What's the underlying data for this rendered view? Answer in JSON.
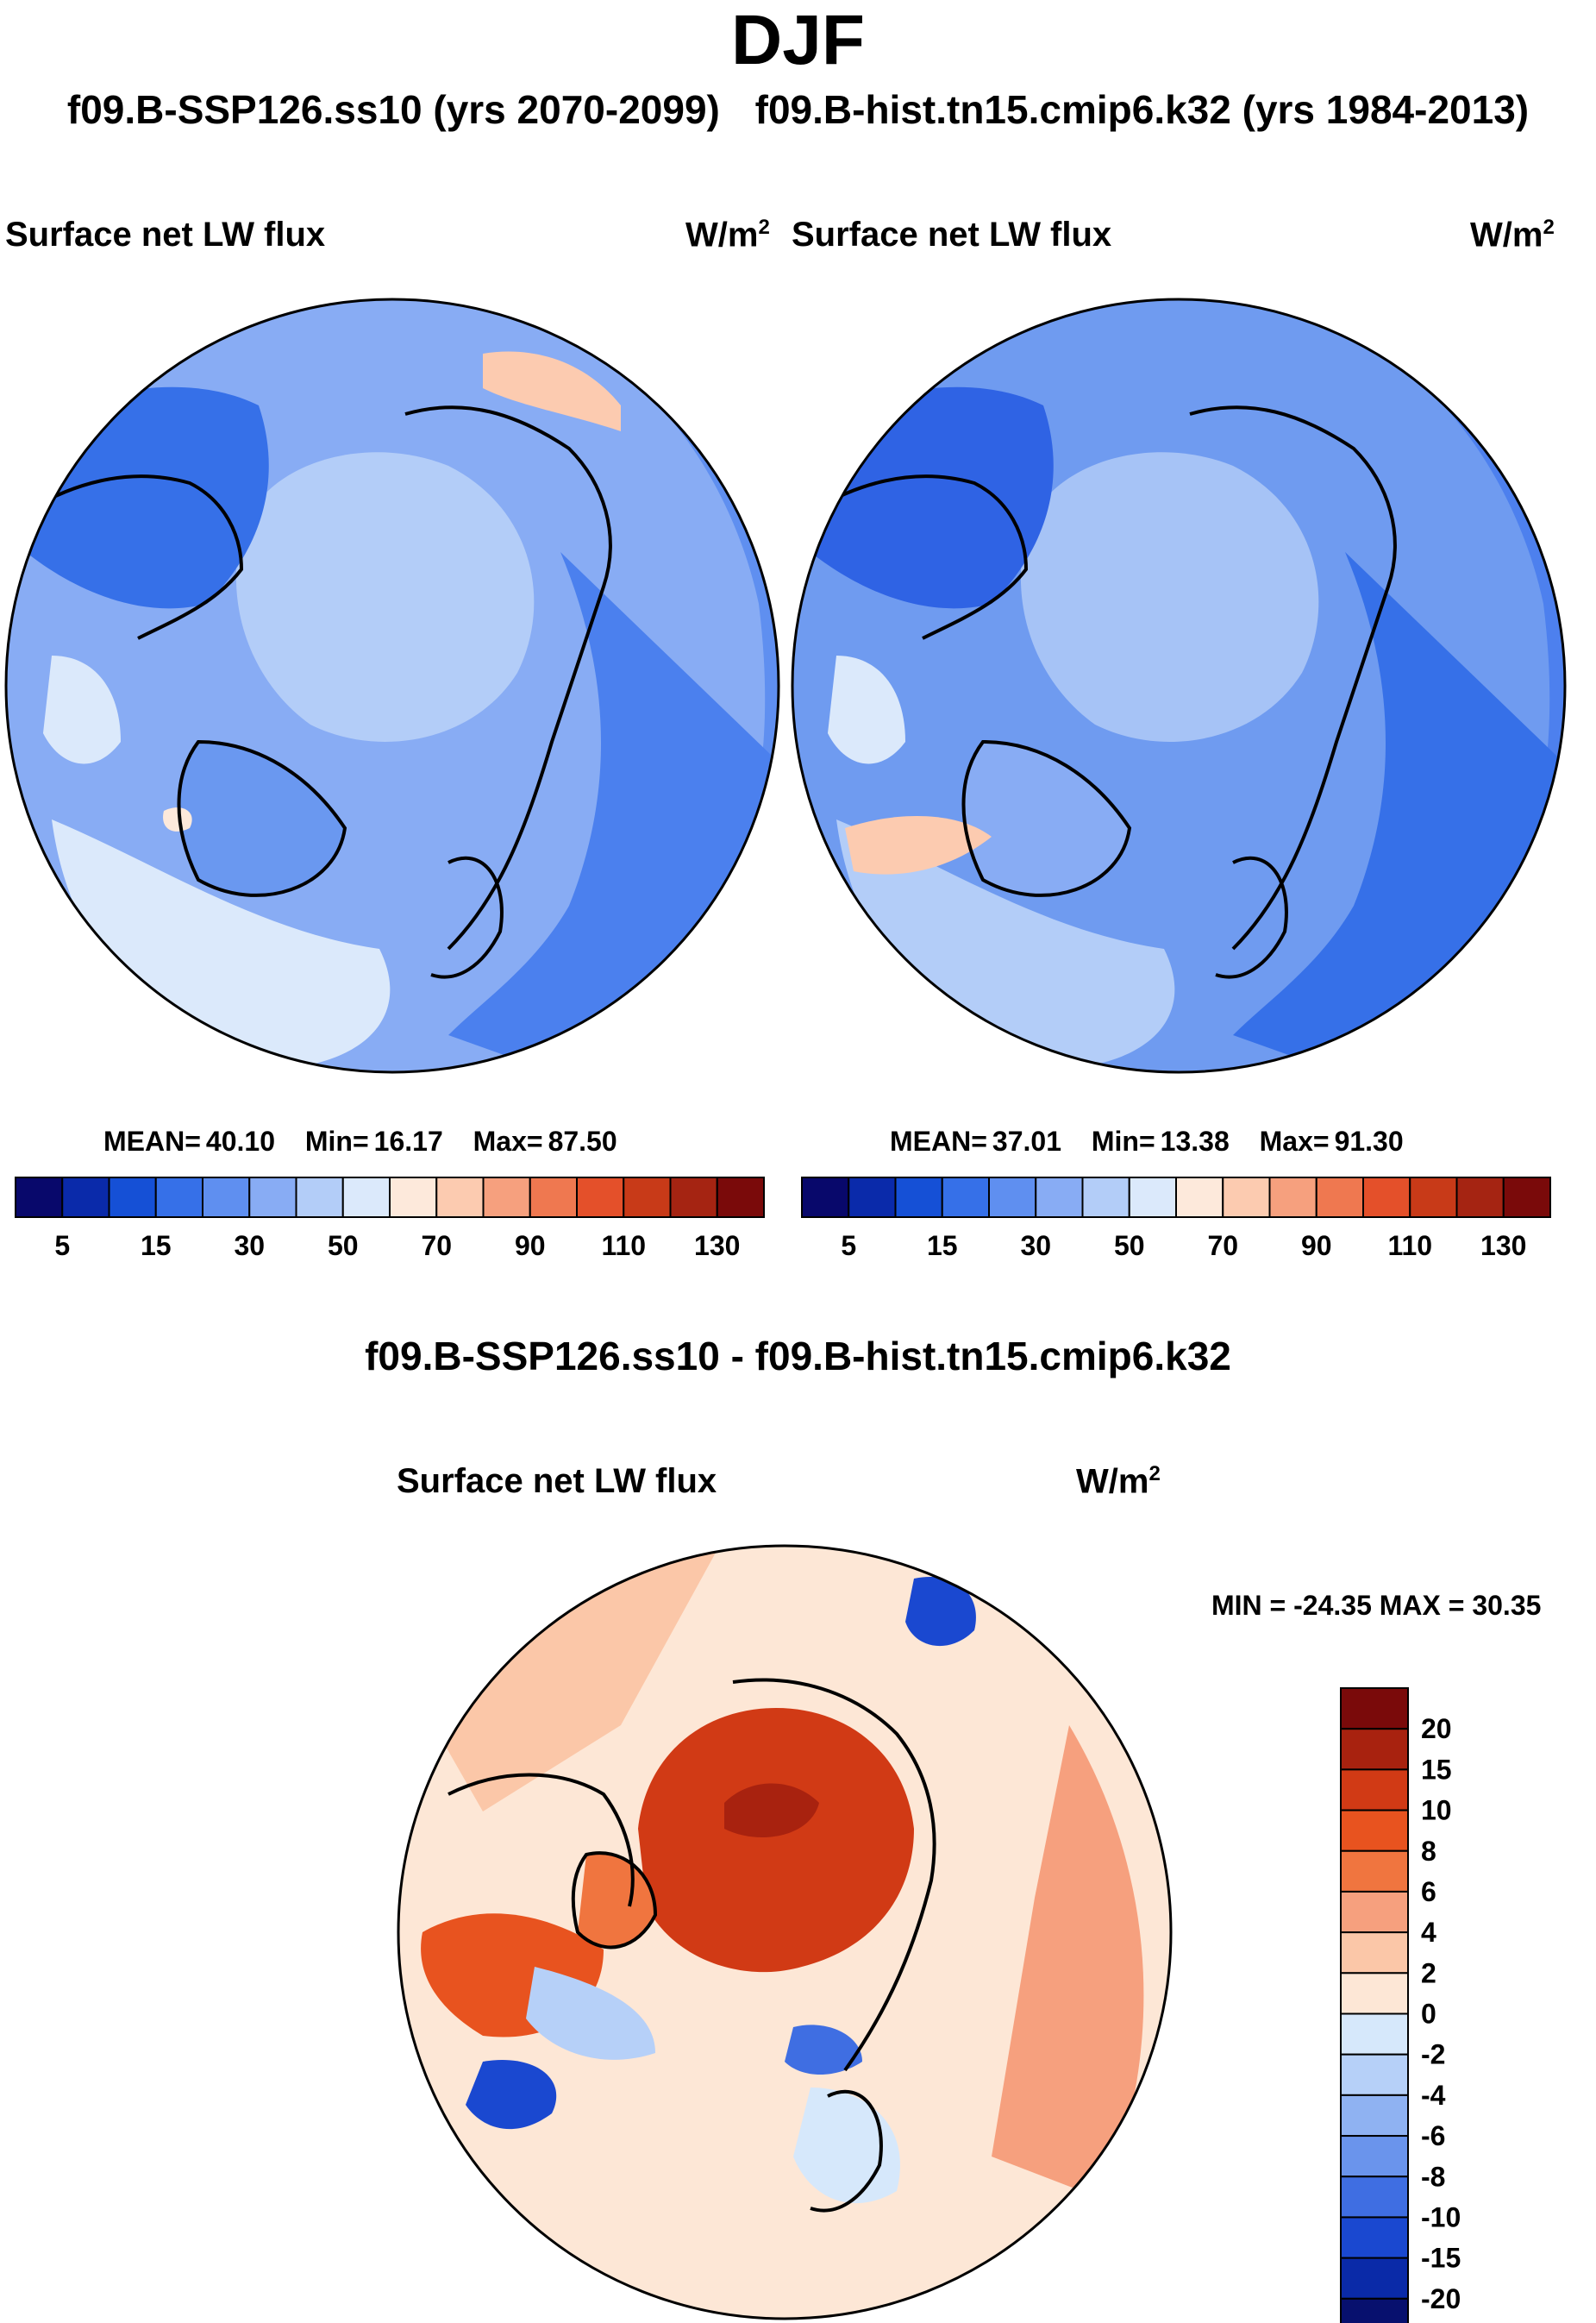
{
  "header": {
    "season": "DJF",
    "left_title": "f09.B-SSP126.ss10 (yrs 2070-2099)",
    "right_title": "f09.B-hist.tn15.cmip6.k32 (yrs 1984-2013)"
  },
  "panels": [
    {
      "variable": "Surface net LW flux",
      "unit": "W/m",
      "unit_exp": "2",
      "mean_label": "MEAN=",
      "mean": "40.10",
      "min_label": "Min=",
      "min": "16.17",
      "max_label": "Max=",
      "max": "87.50"
    },
    {
      "variable": "Surface net LW flux",
      "unit": "W/m",
      "unit_exp": "2",
      "mean_label": "MEAN=",
      "mean": "37.01",
      "min_label": "Min=",
      "min": "13.38",
      "max_label": "Max=",
      "max": "91.30"
    }
  ],
  "difference": {
    "title": "f09.B-SSP126.ss10 - f09.B-hist.tn15.cmip6.k32",
    "variable": "Surface net LW flux",
    "unit": "W/m",
    "unit_exp": "2",
    "minmax_text": "MIN = -24.35 MAX =  30.35"
  },
  "chart_data": [
    {
      "type": "heatmap",
      "projection": "north-polar-stereographic",
      "title": "Surface net LW flux",
      "case": "f09.B-SSP126.ss10 (yrs 2070-2099)",
      "units": "W/m2",
      "mean": 40.1,
      "min": 16.17,
      "max": 87.5,
      "colorbar": {
        "tick_labels": [
          "5",
          "15",
          "30",
          "50",
          "70",
          "90",
          "110",
          "130"
        ],
        "colors": [
          "#08086b",
          "#0a2aaa",
          "#1550d6",
          "#3670e8",
          "#5f8ff0",
          "#88acf4",
          "#b3cdf8",
          "#dbe9fb",
          "#fde9db",
          "#fccbb0",
          "#f6a07e",
          "#ef7850",
          "#e4502a",
          "#c83a18",
          "#a52412",
          "#7a0a0a"
        ]
      }
    },
    {
      "type": "heatmap",
      "projection": "north-polar-stereographic",
      "title": "Surface net LW flux",
      "case": "f09.B-hist.tn15.cmip6.k32 (yrs 1984-2013)",
      "units": "W/m2",
      "mean": 37.01,
      "min": 13.38,
      "max": 91.3,
      "colorbar": {
        "tick_labels": [
          "5",
          "15",
          "30",
          "50",
          "70",
          "90",
          "110",
          "130"
        ],
        "colors": [
          "#08086b",
          "#0a2aaa",
          "#1550d6",
          "#3670e8",
          "#5f8ff0",
          "#88acf4",
          "#b3cdf8",
          "#dbe9fb",
          "#fde9db",
          "#fccbb0",
          "#f6a07e",
          "#ef7850",
          "#e4502a",
          "#c83a18",
          "#a52412",
          "#7a0a0a"
        ]
      }
    },
    {
      "type": "heatmap",
      "projection": "north-polar-stereographic",
      "title": "Surface net LW flux",
      "case": "f09.B-SSP126.ss10 - f09.B-hist.tn15.cmip6.k32",
      "units": "W/m2",
      "min": -24.35,
      "max": 30.35,
      "colorbar": {
        "tick_labels": [
          "20",
          "15",
          "10",
          "8",
          "6",
          "4",
          "2",
          "0",
          "-2",
          "-4",
          "-6",
          "-8",
          "-10",
          "-15",
          "-20"
        ],
        "colors": [
          "#7a0a0a",
          "#a8220f",
          "#d13a15",
          "#e8531f",
          "#f0753f",
          "#f6a07e",
          "#fbc7a8",
          "#fde7d6",
          "#d6e8fb",
          "#b6d0f8",
          "#8fb2f2",
          "#6a94ec",
          "#3f6ee2",
          "#1a48d0",
          "#0a2aa8",
          "#07106e"
        ]
      }
    }
  ]
}
